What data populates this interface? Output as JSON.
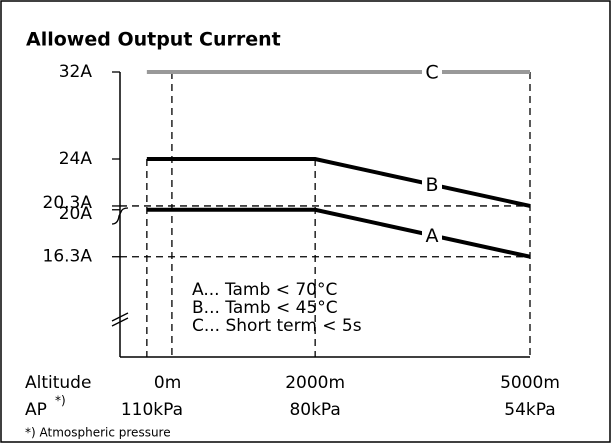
{
  "chart_data": {
    "type": "line",
    "title": "Allowed Output Current",
    "x_label": "Altitude",
    "x2_label": "AP",
    "x2_label_mark": "*)",
    "footnote": "*) Atmospheric pressure",
    "xlim": [
      -725,
      5000
    ],
    "xticks": [
      {
        "value": 0,
        "label": "0m"
      },
      {
        "value": 2000,
        "label": "2000m"
      },
      {
        "value": 5000,
        "label": "5000m"
      }
    ],
    "x2_tick_labels": [
      "110kPa",
      "80kPa",
      "54kPa"
    ],
    "ylim": [
      8.4,
      32
    ],
    "yticks": [
      {
        "value": 16.3,
        "label": "16.3A"
      },
      {
        "value": 20,
        "label": "20A"
      },
      {
        "value": 20.3,
        "label": "20.3A"
      },
      {
        "value": 24,
        "label": "24A"
      },
      {
        "value": 32,
        "label": "32A"
      }
    ],
    "series": [
      {
        "name": "A",
        "color": "#000000",
        "x": [
          -350,
          2000,
          5000
        ],
        "values": [
          20,
          20,
          16.3
        ]
      },
      {
        "name": "B",
        "color": "#000000",
        "x": [
          -350,
          2000,
          5000
        ],
        "values": [
          24,
          24,
          20.3
        ]
      },
      {
        "name": "C",
        "color": "#999999",
        "x": [
          -350,
          5000
        ],
        "values": [
          32,
          32
        ]
      }
    ],
    "annotations": [
      "A... Tamb < 70°C",
      "B... Tamb < 45°C",
      "C... Short term < 5s"
    ]
  }
}
